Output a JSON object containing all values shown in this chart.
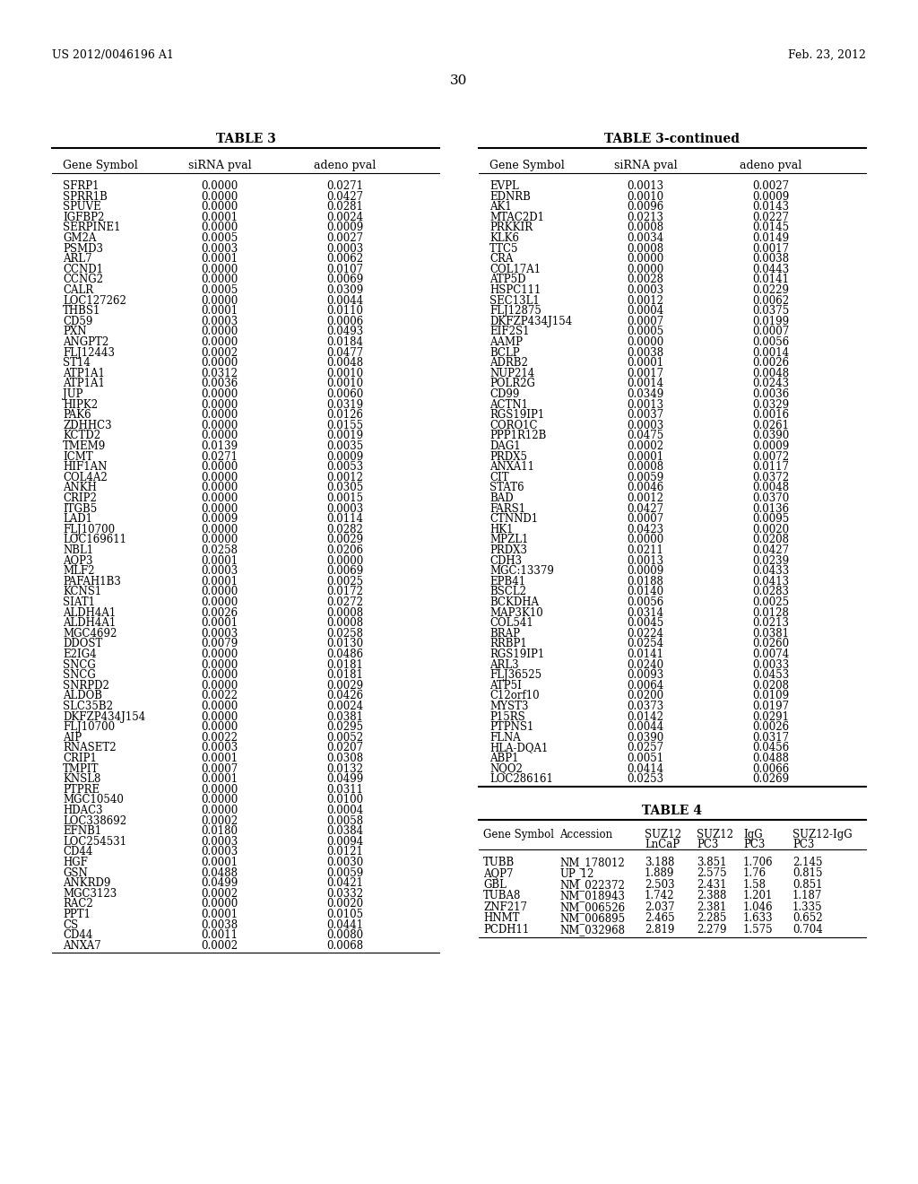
{
  "header_left": "US 2012/0046196 A1",
  "header_right": "Feb. 23, 2012",
  "page_number": "30",
  "table3_title": "TABLE 3",
  "table3_continued_title": "TABLE 3-continued",
  "table4_title": "TABLE 4",
  "table3_headers": [
    "Gene Symbol",
    "siRNA pval",
    "adeno pval"
  ],
  "table3_data": [
    [
      "SFRP1",
      "0.0000",
      "0.0271"
    ],
    [
      "SPRR1B",
      "0.0000",
      "0.0427"
    ],
    [
      "SPUVE",
      "0.0000",
      "0.0281"
    ],
    [
      "IGFBP2",
      "0.0001",
      "0.0024"
    ],
    [
      "SERPINE1",
      "0.0000",
      "0.0009"
    ],
    [
      "GM2A",
      "0.0005",
      "0.0027"
    ],
    [
      "PSMD3",
      "0.0003",
      "0.0003"
    ],
    [
      "ARL7",
      "0.0001",
      "0.0062"
    ],
    [
      "CCND1",
      "0.0000",
      "0.0107"
    ],
    [
      "CCNG2",
      "0.0000",
      "0.0069"
    ],
    [
      "CALR",
      "0.0005",
      "0.0309"
    ],
    [
      "LOC127262",
      "0.0000",
      "0.0044"
    ],
    [
      "THBS1",
      "0.0001",
      "0.0110"
    ],
    [
      "CD59",
      "0.0003",
      "0.0006"
    ],
    [
      "PXN",
      "0.0000",
      "0.0493"
    ],
    [
      "ANGPT2",
      "0.0000",
      "0.0184"
    ],
    [
      "FLJ12443",
      "0.0002",
      "0.0477"
    ],
    [
      "ST14",
      "0.0000",
      "0.0048"
    ],
    [
      "ATP1A1",
      "0.0312",
      "0.0010"
    ],
    [
      "ATP1A1",
      "0.0036",
      "0.0010"
    ],
    [
      "JUP",
      "0.0000",
      "0.0060"
    ],
    [
      "HIPK2",
      "0.0000",
      "0.0319"
    ],
    [
      "PAK6",
      "0.0000",
      "0.0126"
    ],
    [
      "ZDHHC3",
      "0.0000",
      "0.0155"
    ],
    [
      "KCTD2",
      "0.0000",
      "0.0019"
    ],
    [
      "TMEM9",
      "0.0139",
      "0.0035"
    ],
    [
      "ICMT",
      "0.0271",
      "0.0009"
    ],
    [
      "HIF1AN",
      "0.0000",
      "0.0053"
    ],
    [
      "COL4A2",
      "0.0000",
      "0.0012"
    ],
    [
      "ANKH",
      "0.0000",
      "0.0305"
    ],
    [
      "CRIP2",
      "0.0000",
      "0.0015"
    ],
    [
      "ITGB5",
      "0.0000",
      "0.0003"
    ],
    [
      "LAD1",
      "0.0009",
      "0.0114"
    ],
    [
      "FLJ10700",
      "0.0000",
      "0.0282"
    ],
    [
      "LOC169611",
      "0.0000",
      "0.0029"
    ],
    [
      "NBL1",
      "0.0258",
      "0.0206"
    ],
    [
      "AQP3",
      "0.0001",
      "0.0000"
    ],
    [
      "MLF2",
      "0.0003",
      "0.0069"
    ],
    [
      "PAFAH1B3",
      "0.0001",
      "0.0025"
    ],
    [
      "KCNS1",
      "0.0000",
      "0.0172"
    ],
    [
      "SIAT1",
      "0.0000",
      "0.0272"
    ],
    [
      "ALDH4A1",
      "0.0026",
      "0.0008"
    ],
    [
      "ALDH4A1",
      "0.0001",
      "0.0008"
    ],
    [
      "MGC4692",
      "0.0003",
      "0.0258"
    ],
    [
      "DDOST",
      "0.0079",
      "0.0130"
    ],
    [
      "E2IG4",
      "0.0000",
      "0.0486"
    ],
    [
      "SNCG",
      "0.0000",
      "0.0181"
    ],
    [
      "SNCG",
      "0.0000",
      "0.0181"
    ],
    [
      "SNRPD2",
      "0.0000",
      "0.0029"
    ],
    [
      "ALDOB",
      "0.0022",
      "0.0426"
    ],
    [
      "SLC35B2",
      "0.0000",
      "0.0024"
    ],
    [
      "DKFZP434J154",
      "0.0000",
      "0.0381"
    ],
    [
      "FLJ10700",
      "0.0000",
      "0.0295"
    ],
    [
      "AIP",
      "0.0022",
      "0.0052"
    ],
    [
      "RNASET2",
      "0.0003",
      "0.0207"
    ],
    [
      "CRIP1",
      "0.0001",
      "0.0308"
    ],
    [
      "TMPIT",
      "0.0007",
      "0.0132"
    ],
    [
      "KNSL8",
      "0.0001",
      "0.0499"
    ],
    [
      "PTPRE",
      "0.0000",
      "0.0311"
    ],
    [
      "MGC10540",
      "0.0000",
      "0.0100"
    ],
    [
      "HDAC3",
      "0.0000",
      "0.0004"
    ],
    [
      "LOC338692",
      "0.0002",
      "0.0058"
    ],
    [
      "EFNB1",
      "0.0180",
      "0.0384"
    ],
    [
      "LOC254531",
      "0.0003",
      "0.0094"
    ],
    [
      "CD44",
      "0.0003",
      "0.0121"
    ],
    [
      "HGF",
      "0.0001",
      "0.0030"
    ],
    [
      "GSN",
      "0.0488",
      "0.0059"
    ],
    [
      "ANKRD9",
      "0.0499",
      "0.0421"
    ],
    [
      "MGC3123",
      "0.0002",
      "0.0332"
    ],
    [
      "RAC2",
      "0.0000",
      "0.0020"
    ],
    [
      "PPT1",
      "0.0001",
      "0.0105"
    ],
    [
      "CS",
      "0.0038",
      "0.0441"
    ],
    [
      "CD44",
      "0.0011",
      "0.0080"
    ],
    [
      "ANXA7",
      "0.0002",
      "0.0068"
    ]
  ],
  "table3_cont_headers": [
    "Gene Symbol",
    "siRNA pval",
    "adeno pval"
  ],
  "table3_cont_data": [
    [
      "EVPL",
      "0.0013",
      "0.0027"
    ],
    [
      "EDNRB",
      "0.0010",
      "0.0009"
    ],
    [
      "AK1",
      "0.0096",
      "0.0143"
    ],
    [
      "MTAC2D1",
      "0.0213",
      "0.0227"
    ],
    [
      "PRKKIR",
      "0.0008",
      "0.0145"
    ],
    [
      "KLK6",
      "0.0034",
      "0.0149"
    ],
    [
      "TTC5",
      "0.0008",
      "0.0017"
    ],
    [
      "CRA",
      "0.0000",
      "0.0038"
    ],
    [
      "COL17A1",
      "0.0000",
      "0.0443"
    ],
    [
      "ATP5D",
      "0.0028",
      "0.0141"
    ],
    [
      "HSPC111",
      "0.0003",
      "0.0229"
    ],
    [
      "SEC13L1",
      "0.0012",
      "0.0062"
    ],
    [
      "FLJ12875",
      "0.0004",
      "0.0375"
    ],
    [
      "DKFZP434J154",
      "0.0007",
      "0.0199"
    ],
    [
      "EIF2S1",
      "0.0005",
      "0.0007"
    ],
    [
      "AAMP",
      "0.0000",
      "0.0056"
    ],
    [
      "BCLP",
      "0.0038",
      "0.0014"
    ],
    [
      "ADRB2",
      "0.0001",
      "0.0026"
    ],
    [
      "NUP214",
      "0.0017",
      "0.0048"
    ],
    [
      "POLR2G",
      "0.0014",
      "0.0243"
    ],
    [
      "CD99",
      "0.0349",
      "0.0036"
    ],
    [
      "ACTN1",
      "0.0013",
      "0.0329"
    ],
    [
      "RGS19IP1",
      "0.0037",
      "0.0016"
    ],
    [
      "CORO1C",
      "0.0003",
      "0.0261"
    ],
    [
      "PPP1R12B",
      "0.0475",
      "0.0390"
    ],
    [
      "DAG1",
      "0.0002",
      "0.0009"
    ],
    [
      "PRDX5",
      "0.0001",
      "0.0072"
    ],
    [
      "ANXA11",
      "0.0008",
      "0.0117"
    ],
    [
      "CIT",
      "0.0059",
      "0.0372"
    ],
    [
      "STAT6",
      "0.0046",
      "0.0048"
    ],
    [
      "BAD",
      "0.0012",
      "0.0370"
    ],
    [
      "FARS1",
      "0.0427",
      "0.0136"
    ],
    [
      "CTNND1",
      "0.0007",
      "0.0095"
    ],
    [
      "HK1",
      "0.0423",
      "0.0020"
    ],
    [
      "MPZL1",
      "0.0000",
      "0.0208"
    ],
    [
      "PRDX3",
      "0.0211",
      "0.0427"
    ],
    [
      "CDH3",
      "0.0013",
      "0.0239"
    ],
    [
      "MGC:13379",
      "0.0009",
      "0.0433"
    ],
    [
      "EPB41",
      "0.0188",
      "0.0413"
    ],
    [
      "BSCL2",
      "0.0140",
      "0.0283"
    ],
    [
      "BCKDHA",
      "0.0056",
      "0.0025"
    ],
    [
      "MAP3K10",
      "0.0314",
      "0.0128"
    ],
    [
      "COL541",
      "0.0045",
      "0.0213"
    ],
    [
      "BRAP",
      "0.0224",
      "0.0381"
    ],
    [
      "RRBP1",
      "0.0254",
      "0.0260"
    ],
    [
      "RGS19IP1",
      "0.0141",
      "0.0074"
    ],
    [
      "ARL3",
      "0.0240",
      "0.0033"
    ],
    [
      "FLJ36525",
      "0.0093",
      "0.0453"
    ],
    [
      "ATP5I",
      "0.0064",
      "0.0208"
    ],
    [
      "C12orf10",
      "0.0200",
      "0.0109"
    ],
    [
      "MYST3",
      "0.0373",
      "0.0197"
    ],
    [
      "P15RS",
      "0.0142",
      "0.0291"
    ],
    [
      "PTPNS1",
      "0.0044",
      "0.0026"
    ],
    [
      "FLNA",
      "0.0390",
      "0.0317"
    ],
    [
      "HLA-DQA1",
      "0.0257",
      "0.0456"
    ],
    [
      "ABP1",
      "0.0051",
      "0.0488"
    ],
    [
      "NQO2",
      "0.0414",
      "0.0066"
    ],
    [
      "LOC286161",
      "0.0253",
      "0.0269"
    ]
  ],
  "table4_headers_line1": [
    "Gene Symbol",
    "Accession",
    "SUZ12",
    "SUZ12",
    "IgG",
    "SUZ12-IgG"
  ],
  "table4_headers_line2": [
    "",
    "",
    "LnCaP",
    "PC3",
    "PC3",
    "PC3"
  ],
  "table4_data": [
    [
      "TUBB",
      "NM_178012",
      "3.188",
      "3.851",
      "1.706",
      "2.145"
    ],
    [
      "AQP7",
      "UP_12",
      "1.889",
      "2.575",
      "1.76",
      "0.815"
    ],
    [
      "GBL",
      "NM_022372",
      "2.503",
      "2.431",
      "1.58",
      "0.851"
    ],
    [
      "TUBA8",
      "NM_018943",
      "1.742",
      "2.388",
      "1.201",
      "1.187"
    ],
    [
      "ZNF217",
      "NM_006526",
      "2.037",
      "2.381",
      "1.046",
      "1.335"
    ],
    [
      "HNMT",
      "NM_006895",
      "2.465",
      "2.285",
      "1.633",
      "0.652"
    ],
    [
      "PCDH11",
      "NM_032968",
      "2.819",
      "2.279",
      "1.575",
      "0.704"
    ]
  ],
  "bg_color": "#ffffff",
  "text_color": "#000000",
  "font_family": "DejaVu Serif"
}
